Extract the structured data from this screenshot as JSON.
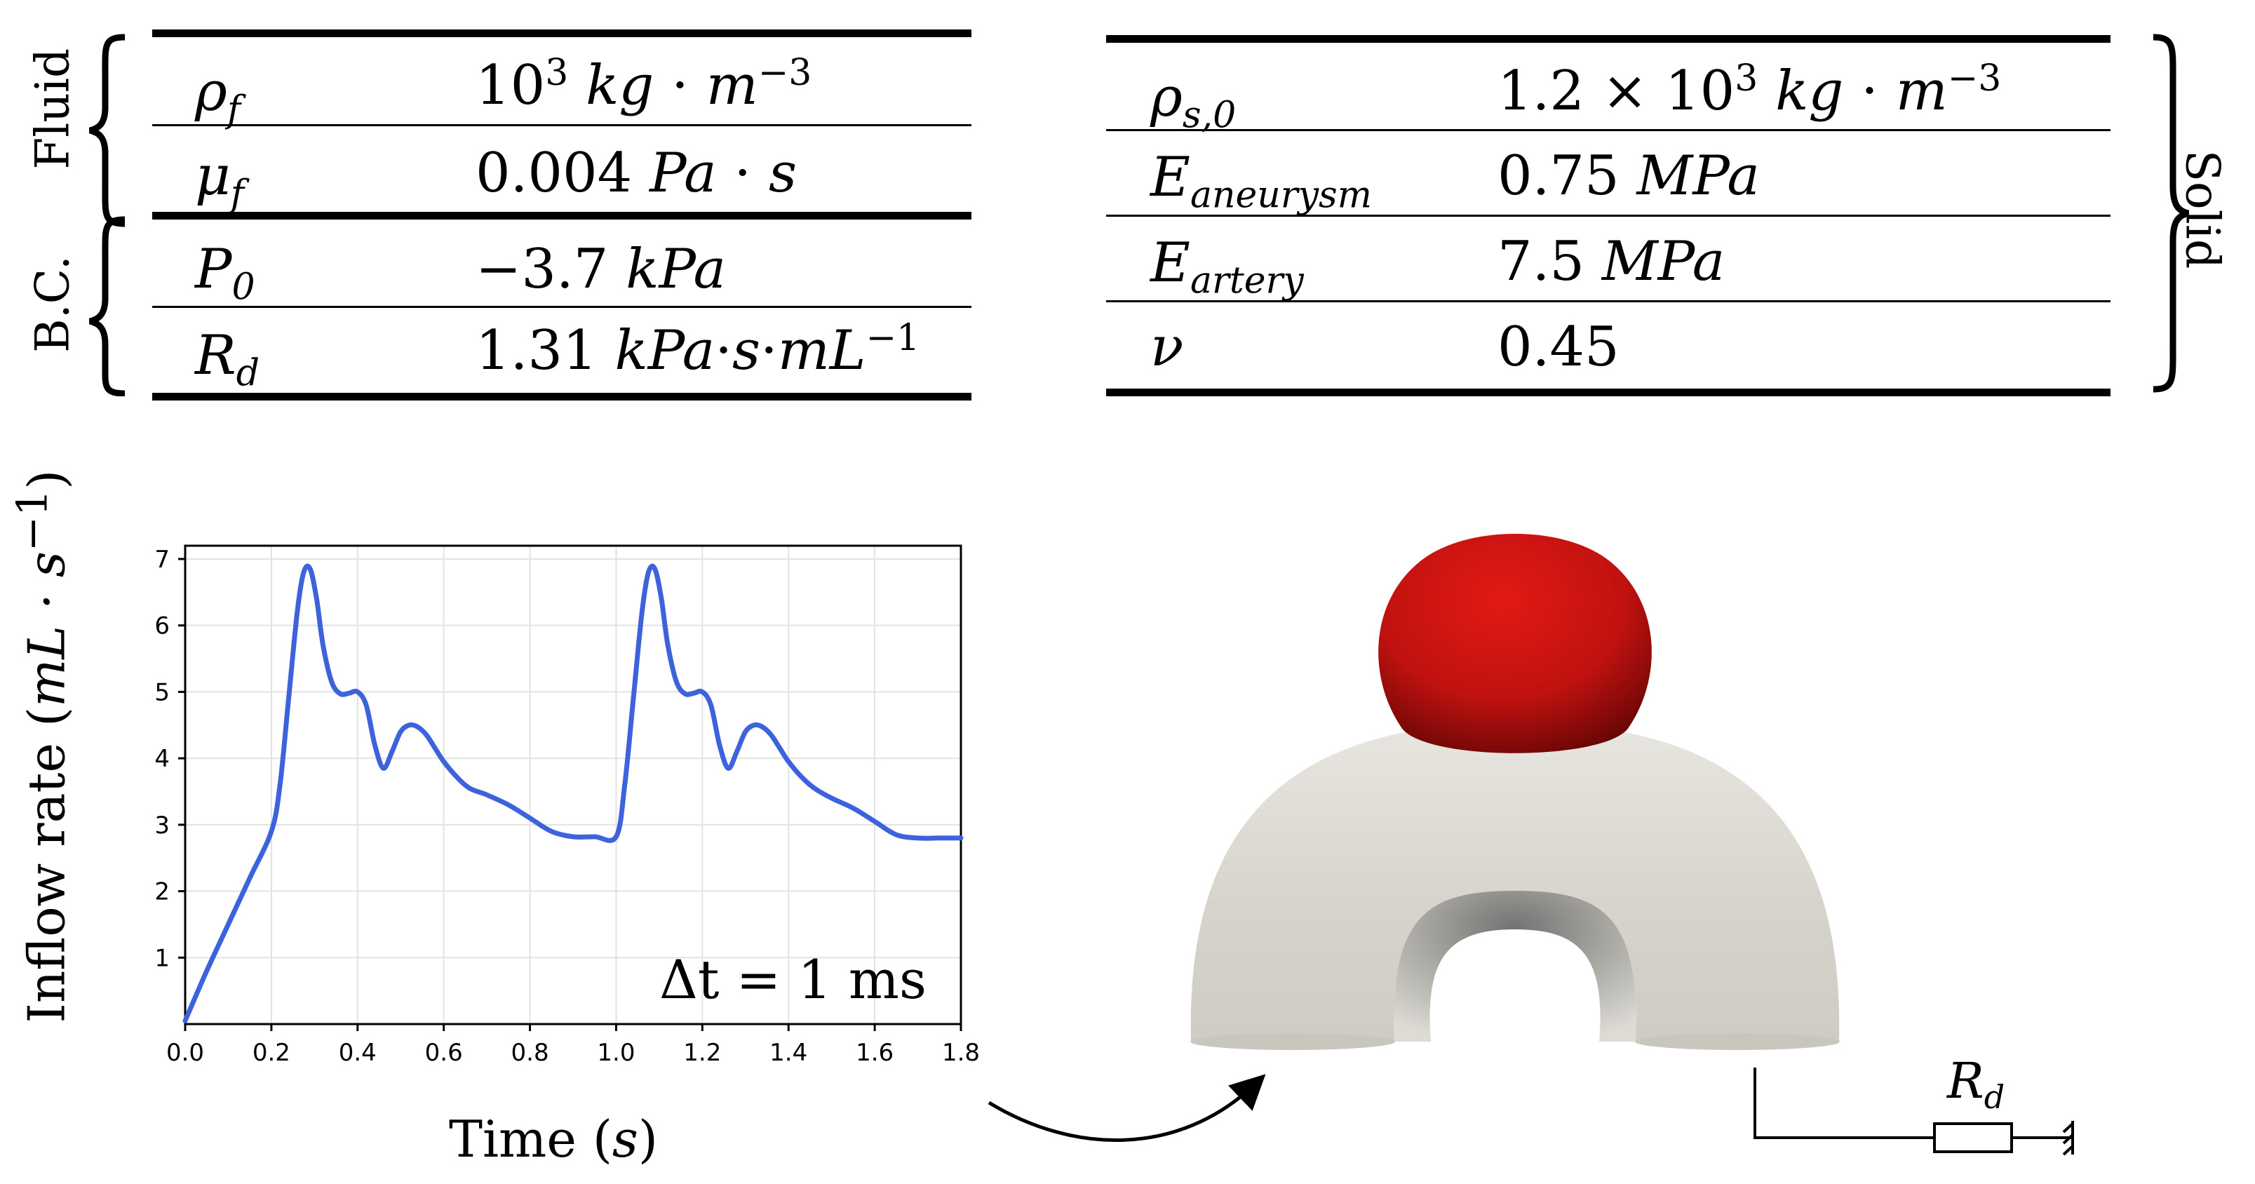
{
  "fluid_table": {
    "group_label": "Fluid",
    "rows": [
      {
        "symbol": "ρ",
        "sub": "f",
        "value_html": "10<sup>3</sup> <span class=\"u\">kg</span> · <span class=\"u\">m</span><sup>−3</sup>"
      },
      {
        "symbol": "μ",
        "sub": "f",
        "value_html": "0.004 <span class=\"u\">Pa</span> · <span class=\"u\">s</span>"
      }
    ]
  },
  "bc_table": {
    "group_label": "B.C.",
    "rows": [
      {
        "symbol": "P",
        "sub": "0",
        "value_html": "−3.7 <span class=\"u\">kPa</span>"
      },
      {
        "symbol": "R",
        "sub": "d",
        "value_html": "1.31 <span class=\"u\">kPa</span>·<span class=\"u\">s</span>·<span class=\"u\">mL</span><sup>−1</sup>"
      }
    ]
  },
  "solid_table": {
    "group_label": "Solid",
    "rows": [
      {
        "symbol": "ρ",
        "sub": "s,0",
        "value_html": "1.2 × 10<sup>3</sup> <span class=\"u\">kg</span> · <span class=\"u\">m</span><sup>−3</sup>"
      },
      {
        "symbol": "E",
        "sub": "aneurysm",
        "value_html": "0.75 <span class=\"u\">MPa</span>"
      },
      {
        "symbol": "E",
        "sub": "artery",
        "value_html": "7.5 <span class=\"u\">MPa</span>"
      },
      {
        "symbol": "ν",
        "sub": "",
        "value_html": "0.45"
      }
    ]
  },
  "chart_data": {
    "type": "line",
    "title": "",
    "xlabel": "Time",
    "xlabel_unit": "s",
    "ylabel": "Inflow rate",
    "ylabel_unit": "mL · s",
    "ylabel_unit_exp": "−1",
    "xlim": [
      0.0,
      1.8
    ],
    "ylim": [
      0,
      7.2
    ],
    "xticks": [
      "0.0",
      "0.2",
      "0.4",
      "0.6",
      "0.8",
      "1.0",
      "1.2",
      "1.4",
      "1.6",
      "1.8"
    ],
    "yticks": [
      "1",
      "2",
      "3",
      "4",
      "5",
      "6",
      "7"
    ],
    "grid": true,
    "annotation": "Δt = 1 ms",
    "series": [
      {
        "color": "#3d63dc",
        "x": [
          0.0,
          0.05,
          0.1,
          0.15,
          0.2,
          0.22,
          0.24,
          0.26,
          0.275,
          0.29,
          0.305,
          0.32,
          0.34,
          0.36,
          0.38,
          0.4,
          0.42,
          0.44,
          0.46,
          0.48,
          0.5,
          0.52,
          0.54,
          0.56,
          0.58,
          0.6,
          0.63,
          0.66,
          0.7,
          0.75,
          0.8,
          0.85,
          0.9,
          0.95,
          1.0,
          1.02,
          1.04,
          1.06,
          1.075,
          1.09,
          1.105,
          1.12,
          1.14,
          1.16,
          1.18,
          1.2,
          1.22,
          1.24,
          1.26,
          1.28,
          1.3,
          1.32,
          1.34,
          1.36,
          1.38,
          1.4,
          1.43,
          1.46,
          1.5,
          1.55,
          1.6,
          1.65,
          1.7,
          1.75,
          1.8
        ],
        "y": [
          0.05,
          0.8,
          1.5,
          2.2,
          2.9,
          3.6,
          4.9,
          6.2,
          6.8,
          6.85,
          6.4,
          5.7,
          5.15,
          4.97,
          4.98,
          5.0,
          4.8,
          4.2,
          3.85,
          4.1,
          4.4,
          4.5,
          4.47,
          4.35,
          4.15,
          3.95,
          3.72,
          3.55,
          3.45,
          3.3,
          3.1,
          2.9,
          2.82,
          2.82,
          2.82,
          3.6,
          4.9,
          6.2,
          6.8,
          6.85,
          6.4,
          5.7,
          5.15,
          4.97,
          4.98,
          5.0,
          4.8,
          4.2,
          3.85,
          4.1,
          4.4,
          4.5,
          4.47,
          4.35,
          4.15,
          3.95,
          3.72,
          3.55,
          3.4,
          3.25,
          3.05,
          2.85,
          2.8,
          2.8,
          2.8
        ]
      }
    ]
  },
  "schematic": {
    "resistor_label": "R",
    "resistor_sub": "d",
    "colors": {
      "aneurysm": "#c81410",
      "artery": "#d8d5ce",
      "line": "#000000"
    }
  }
}
